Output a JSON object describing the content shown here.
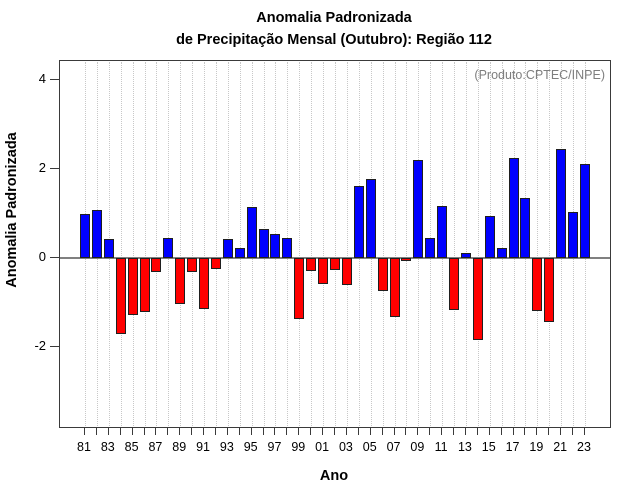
{
  "chart_data": {
    "type": "bar",
    "title": "Anomalia Padronizada",
    "subtitle": "de Precipitação Mensal (Outubro): Região 112",
    "xlabel": "Ano",
    "ylabel": "Anomalia Padronizada",
    "annotation": "(Produto:CPTEC/INPE)",
    "categories": [
      "81",
      "82",
      "83",
      "84",
      "85",
      "86",
      "87",
      "88",
      "89",
      "90",
      "91",
      "92",
      "93",
      "94",
      "95",
      "96",
      "97",
      "98",
      "99",
      "00",
      "01",
      "02",
      "03",
      "04",
      "05",
      "06",
      "07",
      "08",
      "09",
      "10",
      "11",
      "12",
      "13",
      "14",
      "15",
      "16",
      "17",
      "18",
      "19",
      "20",
      "21",
      "22",
      "23"
    ],
    "values": [
      1.0,
      1.08,
      0.43,
      -1.71,
      -1.28,
      -1.22,
      -0.31,
      0.44,
      -1.03,
      -0.32,
      -1.15,
      -0.25,
      0.43,
      0.23,
      1.14,
      0.66,
      0.53,
      0.45,
      -1.38,
      -0.3,
      -0.58,
      -0.26,
      -0.6,
      1.63,
      1.77,
      -0.75,
      -1.32,
      -0.07,
      2.2,
      0.44,
      1.18,
      -1.16,
      0.12,
      -1.84,
      0.95,
      0.23,
      2.25,
      1.35,
      -1.2,
      -1.43,
      2.44,
      1.03,
      2.12
    ],
    "x_tick_label_every": 2,
    "yticks": [
      -2,
      0,
      2,
      4
    ],
    "ylim": [
      -3.8,
      4.43
    ],
    "grid": "vertical-dotted",
    "legend": "none",
    "colors": {
      "positive": "#0000ff",
      "negative": "#ff0000",
      "bar_border": "#1f1f1f",
      "zero_line": "#808080",
      "grid_line": "#c8c8c8",
      "axis_box": "#3a3a3a",
      "annotation_text": "#7e7e7e"
    }
  }
}
